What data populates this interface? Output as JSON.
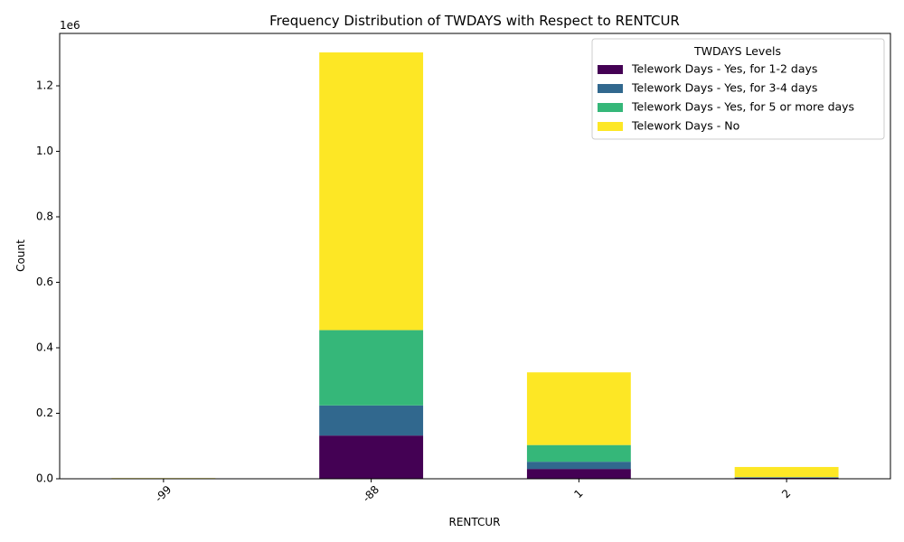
{
  "chart_data": {
    "type": "bar",
    "stacked": true,
    "title": "Frequency Distribution of TWDAYS with Respect to RENTCUR",
    "xlabel": "RENTCUR",
    "ylabel": "Count",
    "y_offset_label": "1e6",
    "categories": [
      "-99",
      "-88",
      "1",
      "2"
    ],
    "ylim": [
      0,
      1360000
    ],
    "yticks": [
      0,
      200000,
      400000,
      600000,
      800000,
      1000000,
      1200000
    ],
    "ytick_labels": [
      "0.0",
      "0.2",
      "0.4",
      "0.6",
      "0.8",
      "1.0",
      "1.2"
    ],
    "grid": false,
    "legend": {
      "title": "TWDAYS Levels",
      "placement": "top-right"
    },
    "series": [
      {
        "name": "Telework Days - Yes, for 1-2 days",
        "color": "#440154",
        "values": [
          200,
          132000,
          30000,
          3000
        ]
      },
      {
        "name": "Telework Days - Yes, for 3-4 days",
        "color": "#31688e",
        "values": [
          100,
          92000,
          22000,
          1000
        ]
      },
      {
        "name": "Telework Days - Yes, for 5 or more days",
        "color": "#35b779",
        "values": [
          200,
          230000,
          51000,
          1000
        ]
      },
      {
        "name": "Telework Days - No",
        "color": "#fde725",
        "values": [
          1500,
          848000,
          222000,
          31000
        ]
      }
    ]
  }
}
